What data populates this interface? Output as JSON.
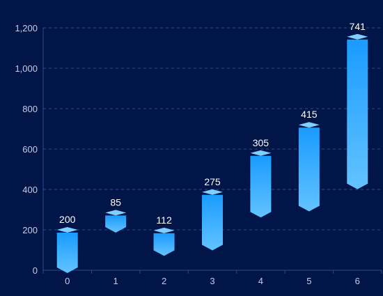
{
  "chart_data": {
    "type": "bar",
    "subtype": "floating-range",
    "categories": [
      "0",
      "1",
      "2",
      "3",
      "4",
      "5",
      "6"
    ],
    "series": [
      {
        "base": [
          0,
          200,
          85,
          112,
          275,
          305,
          415
        ],
        "values": [
          200,
          85,
          112,
          275,
          305,
          415,
          741
        ],
        "top": [
          200,
          285,
          197,
          387,
          580,
          720,
          1156
        ]
      }
    ],
    "ylim": [
      0,
      1200
    ],
    "yticks": [
      0,
      200,
      400,
      600,
      800,
      1000,
      1200
    ],
    "ytick_labels": [
      "0",
      "200",
      "400",
      "600",
      "800",
      "1,000",
      "1,200"
    ],
    "grid": true,
    "legend": "none",
    "title": "",
    "xlabel": "",
    "ylabel": "",
    "colors": {
      "background": "#021548",
      "bar_top": "#1A9BFF",
      "bar_bottom": "#63C3FF",
      "cap": "#7FD0FF",
      "grid": "#2E4A85",
      "axis_text": "#C4CEEA",
      "label_text": "#FFFFFF"
    }
  }
}
